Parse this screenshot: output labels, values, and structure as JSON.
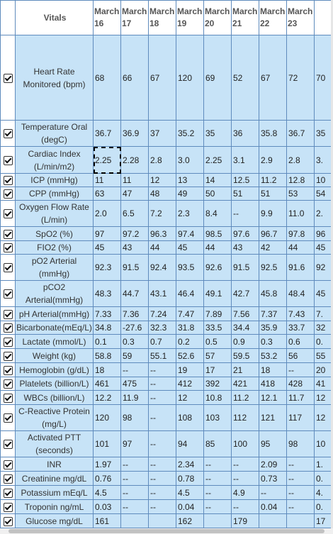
{
  "header": {
    "vitals_label": "Vitals",
    "dates": [
      "March 16",
      "March 17",
      "March 18",
      "March 19",
      "March 20",
      "March 21",
      "March 22",
      "March 23",
      ""
    ]
  },
  "rows": [
    {
      "label": "Heart Rate Monitored (bpm)",
      "height": 120,
      "values": [
        "68",
        "66",
        "67",
        "120",
        "69",
        "52",
        "67",
        "72",
        "70"
      ]
    },
    {
      "label": "Temperature Oral (degC)",
      "height": 36,
      "values": [
        "36.7",
        "36.9",
        "37",
        "35.2",
        "35",
        "36",
        "35.8",
        "36.7",
        "35"
      ]
    },
    {
      "label": "Cardiac Index (L/min/m2)",
      "height": 38,
      "values": [
        "2.25",
        "2.28",
        "2.8",
        "3.0",
        "2.25",
        "3.1",
        "2.9",
        "2.8",
        "3."
      ],
      "selected": 0
    },
    {
      "label": "ICP (mmHg)",
      "height": 19,
      "values": [
        "11",
        "11",
        "12",
        "13",
        "14",
        "12.5",
        "11.2",
        "12.8",
        "10"
      ]
    },
    {
      "label": "CPP (mmHg)",
      "height": 19,
      "values": [
        "63",
        "47",
        "48",
        "49",
        "50",
        "51",
        "51",
        "53",
        "54"
      ]
    },
    {
      "label": "Oxygen Flow Rate (L/min)",
      "height": 36,
      "values": [
        "2.0",
        "6.5",
        "7.2",
        "2.3",
        "8.4",
        "--",
        "9.9",
        "11.0",
        "2."
      ]
    },
    {
      "label": "SpO2 (%)",
      "height": 20,
      "values": [
        "97",
        "97.2",
        "96.3",
        "97.4",
        "98.5",
        "97.6",
        "96.7",
        "97.8",
        "96"
      ]
    },
    {
      "label": "FIO2 (%)",
      "height": 19,
      "values": [
        "45",
        "43",
        "44",
        "45",
        "44",
        "43",
        "42",
        "44",
        "45"
      ]
    },
    {
      "label": "pO2 Arterial (mmHg)",
      "height": 37,
      "values": [
        "92.3",
        "91.5",
        "92.4",
        "93.5",
        "92.6",
        "91.5",
        "92.5",
        "91.6",
        "92"
      ]
    },
    {
      "label": "pCO2 Arterial(mmHg)",
      "height": 37,
      "values": [
        "48.3",
        "44.7",
        "43.1",
        "46.4",
        "49.1",
        "42.7",
        "45.8",
        "48.4",
        "45"
      ]
    },
    {
      "label": "pH Arterial(mmHg)",
      "height": 20,
      "values": [
        "7.33",
        "7.36",
        "7.24",
        "7.47",
        "7.89",
        "7.56",
        "7.37",
        "7.43",
        "7."
      ]
    },
    {
      "label": "Bicarbonate(mEq/L)",
      "height": 19,
      "values": [
        "34.8",
        "-27.6",
        "32.3",
        "31.8",
        "33.5",
        "34.4",
        "35.9",
        "33.7",
        "32"
      ]
    },
    {
      "label": "Lactate (mmol/L)",
      "height": 20,
      "values": [
        "0.1",
        "0.3",
        "0.7",
        "0.2",
        "0.5",
        "0.9",
        "0.3",
        "0.6",
        "0."
      ]
    },
    {
      "label": "Weight (kg)",
      "height": 20,
      "values": [
        "58.8",
        "59",
        "55.1",
        "52.6",
        "57",
        "59.5",
        "53.2",
        "56",
        "55"
      ]
    },
    {
      "label": "Hemoglobin (g/dL)",
      "height": 20,
      "values": [
        "18",
        "--",
        "--",
        "19",
        "17",
        "21",
        "18",
        "--",
        "20"
      ]
    },
    {
      "label": "Platelets (billion/L)",
      "height": 19,
      "values": [
        "461",
        "475",
        "--",
        "412",
        "392",
        "421",
        "418",
        "428",
        "41"
      ]
    },
    {
      "label": "WBCs (billion/L)",
      "height": 20,
      "values": [
        "12.2",
        "11.9",
        "--",
        "12",
        "10.8",
        "11.2",
        "12.1",
        "11.7",
        "12"
      ]
    },
    {
      "label": "C-Reactive Protein (mg/L)",
      "height": 37,
      "values": [
        "120",
        "98",
        "--",
        "108",
        "103",
        "112",
        "121",
        "117",
        "12"
      ]
    },
    {
      "label": "Activated PTT (seconds)",
      "height": 37,
      "values": [
        "101",
        "97",
        "--",
        "94",
        "85",
        "100",
        "95",
        "98",
        "10"
      ]
    },
    {
      "label": "INR",
      "height": 20,
      "values": [
        "1.97",
        "--",
        "--",
        "2.34",
        "--",
        "--",
        "2.09",
        "--",
        "1."
      ]
    },
    {
      "label": "Creatinine mg/dL",
      "height": 20,
      "values": [
        "0.76",
        "--",
        "--",
        "0.78",
        "--",
        "--",
        "0.73",
        "--",
        "0."
      ]
    },
    {
      "label": "Potassium mEq/L",
      "height": 20,
      "values": [
        "4.5",
        "--",
        "--",
        "4.5",
        "--",
        "4.9",
        "--",
        "--",
        "4."
      ]
    },
    {
      "label": "Troponin ng/mL",
      "height": 20,
      "values": [
        "0.03",
        "--",
        "--",
        "0.04",
        "--",
        "--",
        "0.04",
        "--",
        "0."
      ]
    },
    {
      "label": "Glucose mg/dL",
      "height": 20,
      "values": [
        "161",
        "",
        "",
        "162",
        "",
        "179",
        "",
        "",
        "17"
      ]
    }
  ]
}
